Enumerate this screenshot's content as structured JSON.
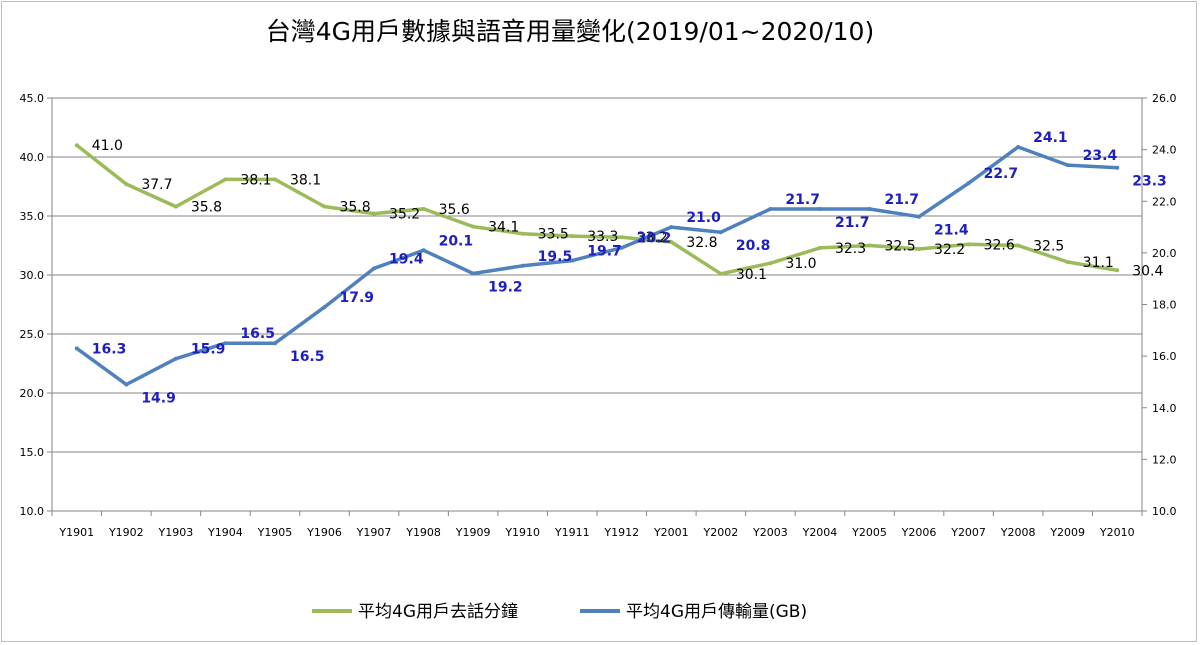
{
  "chart_data": {
    "type": "line",
    "title": "台灣4G用戶數據與語音用量變化(2019/01~2020/10)",
    "categories": [
      "Y1901",
      "Y1902",
      "Y1903",
      "Y1904",
      "Y1905",
      "Y1906",
      "Y1907",
      "Y1908",
      "Y1909",
      "Y1910",
      "Y1911",
      "Y1912",
      "Y2001",
      "Y2002",
      "Y2003",
      "Y2004",
      "Y2005",
      "Y2006",
      "Y2007",
      "Y2008",
      "Y2009",
      "Y2010"
    ],
    "y_left": {
      "min": 10.0,
      "max": 45.0,
      "ticks": [
        "10.0",
        "15.0",
        "20.0",
        "25.0",
        "30.0",
        "35.0",
        "40.0",
        "45.0"
      ]
    },
    "y_right": {
      "min": 10.0,
      "max": 26.0,
      "ticks": [
        "10.0",
        "12.0",
        "14.0",
        "16.0",
        "18.0",
        "20.0",
        "22.0",
        "24.0",
        "26.0"
      ]
    },
    "grid": "horizontal",
    "legend_position": "bottom",
    "series": [
      {
        "name": "平均4G用戶去話分鐘",
        "axis": "left",
        "color": "#9bbb59",
        "values": [
          41.0,
          37.7,
          35.8,
          38.1,
          38.1,
          35.8,
          35.2,
          35.6,
          34.1,
          33.5,
          33.3,
          33.2,
          32.8,
          30.1,
          31.0,
          32.3,
          32.5,
          32.2,
          32.6,
          32.5,
          31.1,
          30.4
        ],
        "labels": [
          "41.0",
          "37.7",
          "35.8",
          "38.1",
          "38.1",
          "35.8",
          "35.2",
          "35.6",
          "34.1",
          "33.5",
          "33.3",
          "33.2",
          "32.8",
          "30.1",
          "31.0",
          "32.3",
          "32.5",
          "32.2",
          "32.6",
          "32.5",
          "31.1",
          "30.4"
        ]
      },
      {
        "name": "平均4G用戶傳輸量(GB)",
        "axis": "right",
        "color": "#4f81bd",
        "values": [
          16.3,
          14.9,
          15.9,
          16.5,
          16.5,
          17.9,
          19.4,
          20.1,
          19.2,
          19.5,
          19.7,
          20.2,
          21.0,
          20.8,
          21.7,
          21.7,
          21.7,
          21.4,
          22.7,
          24.1,
          23.4,
          23.3
        ],
        "labels": [
          "16.3",
          "14.9",
          "15.9",
          "16.5",
          "16.5",
          "17.9",
          "19.4",
          "20.1",
          "19.2",
          "19.5",
          "19.7",
          "20.2",
          "21.0",
          "20.8",
          "21.7",
          "21.7",
          "21.7",
          "21.4",
          "22.7",
          "24.1",
          "23.4",
          "23.3"
        ]
      }
    ]
  }
}
